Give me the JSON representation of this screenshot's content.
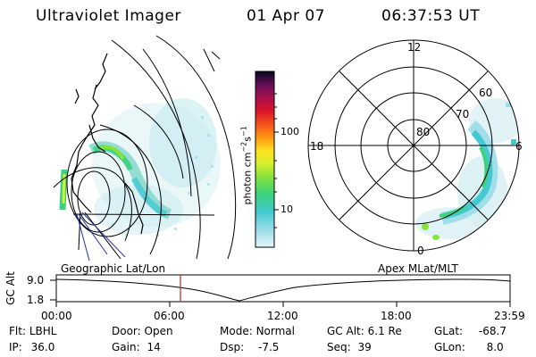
{
  "header": {
    "title": "Ultraviolet Imager",
    "date": "01 Apr 07",
    "time": "06:37:53 UT"
  },
  "colorbar": {
    "label": "photon cm",
    "label_sup1": "−2",
    "label_s": "s",
    "label_sup2": "−1",
    "tick_high": "100",
    "tick_low": "10",
    "gradient": [
      "#e6f6fa",
      "#9adce8",
      "#43c9d2",
      "#3bd27e",
      "#86e33a",
      "#d9ef2e",
      "#ffe11f",
      "#ff9a12",
      "#f4501a",
      "#d9122a",
      "#a8104c",
      "#6a0e57",
      "#2a0c3a",
      "#050510"
    ]
  },
  "polar": {
    "label_top": "12",
    "label_left": "18",
    "label_right": "6",
    "label_bottom": "0",
    "ring_80": "80",
    "ring_70": "70",
    "ring_60": "60"
  },
  "panel_labels": {
    "left": "Geographic Lat/Lon",
    "right": "Apex MLat/MLT"
  },
  "timeline": {
    "axis_label": "GC Alt",
    "y_high": "9.0",
    "y_low": "1.8",
    "ticks": [
      "00:00",
      "06:00",
      "12:00",
      "18:00",
      "23:59"
    ],
    "current_marker_color": "#cc2222"
  },
  "info": {
    "flt_label": "Flt:",
    "flt_value": "LBHL",
    "ip_label": "IP:",
    "ip_value": "36.0",
    "door_label": "Door:",
    "door_value": "Open",
    "gain_label": "Gain:",
    "gain_value": "14",
    "mode_label": "Mode:",
    "mode_value": "Normal",
    "dsp_label": "Dsp:",
    "dsp_value": "-7.5",
    "gcalt_label": "GC Alt:",
    "gcalt_value": "6.1 Re",
    "seq_label": "Seq:",
    "seq_value": "39",
    "glat_label": "GLat:",
    "glat_value": "-68.7",
    "glon_label": "GLon:",
    "glon_value": "8.0"
  }
}
